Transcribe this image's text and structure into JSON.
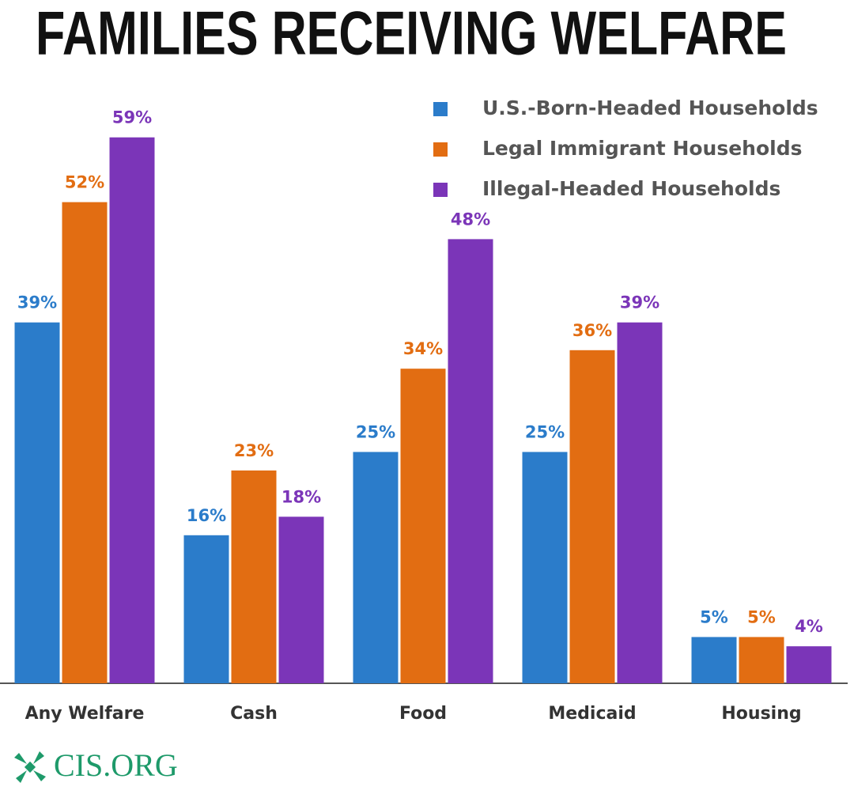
{
  "chart_data": {
    "type": "bar",
    "title": "FAMILIES RECEIVING WELFARE",
    "categories": [
      "Any Welfare",
      "Cash",
      "Food",
      "Medicaid",
      "Housing"
    ],
    "series": [
      {
        "name": "U.S.-Born-Headed Households",
        "color": "#2b7cca",
        "values": [
          39,
          16,
          25,
          25,
          5
        ],
        "value_labels": [
          "39%",
          "16%",
          "25%",
          "25%",
          "5%"
        ]
      },
      {
        "name": "Legal Immigrant Households",
        "color": "#e26d12",
        "values": [
          52,
          23,
          34,
          36,
          5
        ],
        "value_labels": [
          "52%",
          "23%",
          "34%",
          "36%",
          "5%"
        ]
      },
      {
        "name": "Illegal-Headed Households",
        "color": "#7b35b8",
        "values": [
          59,
          18,
          48,
          39,
          4
        ],
        "value_labels": [
          "59%",
          "18%",
          "48%",
          "39%",
          "4%"
        ]
      }
    ],
    "legend": "upper right",
    "source_logo": "CIS.ORG"
  }
}
